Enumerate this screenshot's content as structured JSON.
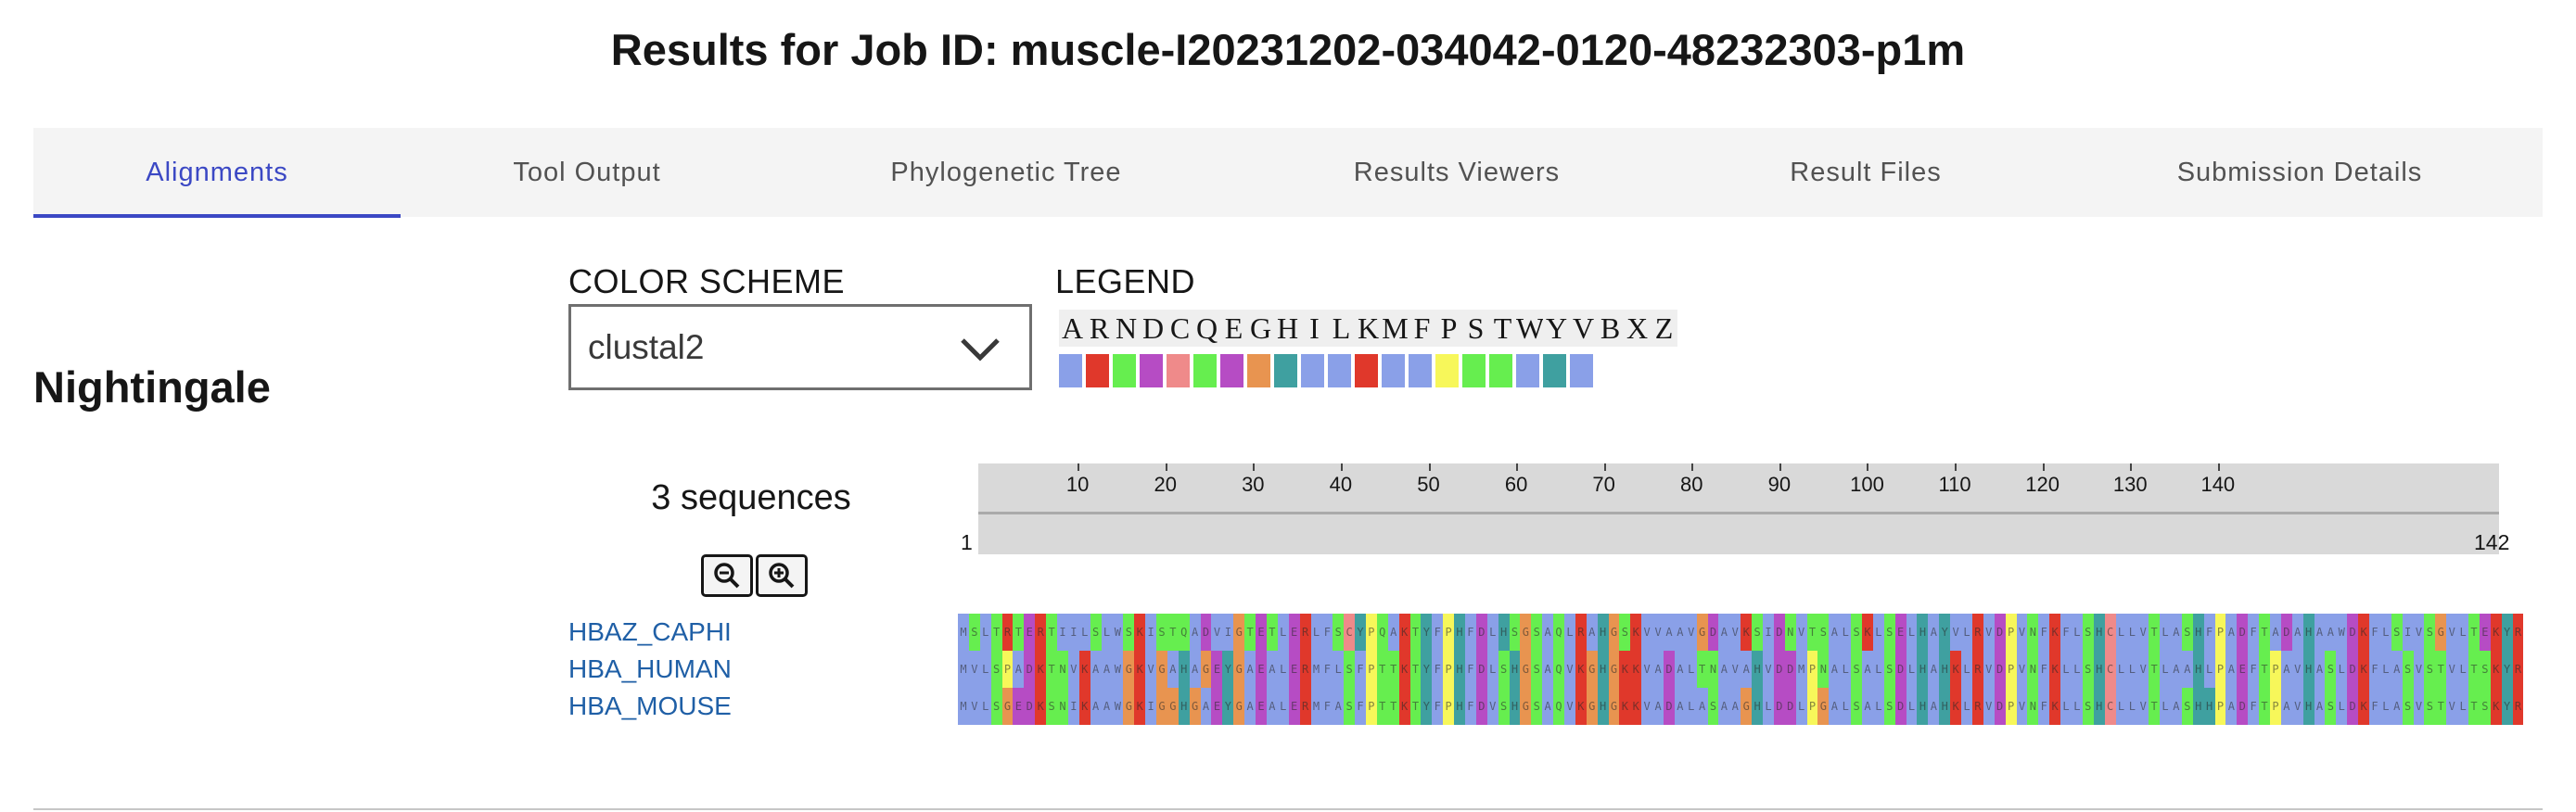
{
  "page": {
    "job_title": "Results for Job ID: muscle-I20231202-034042-0120-48232303-p1m"
  },
  "tabs": [
    {
      "label": "Alignments",
      "active": true
    },
    {
      "label": "Tool Output",
      "active": false
    },
    {
      "label": "Phylogenetic Tree",
      "active": false
    },
    {
      "label": "Results Viewers",
      "active": false
    },
    {
      "label": "Result Files",
      "active": false
    },
    {
      "label": "Submission Details",
      "active": false
    }
  ],
  "viewer": {
    "section_title": "Nightingale",
    "color_scheme_label": "COLOR SCHEME",
    "color_scheme_value": "clustal2",
    "legend_label": "LEGEND",
    "sequence_count": "3 sequences",
    "zoom_out_icon": "zoom-out-icon",
    "zoom_in_icon": "zoom-in-icon"
  },
  "legend": [
    {
      "letter": "A",
      "color": "#8aa0e8"
    },
    {
      "letter": "R",
      "color": "#e0382b"
    },
    {
      "letter": "N",
      "color": "#66ee4f"
    },
    {
      "letter": "D",
      "color": "#b64cc4"
    },
    {
      "letter": "C",
      "color": "#ef8a8a"
    },
    {
      "letter": "Q",
      "color": "#66ee4f"
    },
    {
      "letter": "E",
      "color": "#b64cc4"
    },
    {
      "letter": "G",
      "color": "#e89450"
    },
    {
      "letter": "H",
      "color": "#3fa0a0"
    },
    {
      "letter": "I",
      "color": "#8aa0e8"
    },
    {
      "letter": "L",
      "color": "#8aa0e8"
    },
    {
      "letter": "K",
      "color": "#e0382b"
    },
    {
      "letter": "M",
      "color": "#8aa0e8"
    },
    {
      "letter": "F",
      "color": "#8aa0e8"
    },
    {
      "letter": "P",
      "color": "#f7f75a"
    },
    {
      "letter": "S",
      "color": "#66ee4f"
    },
    {
      "letter": "T",
      "color": "#66ee4f"
    },
    {
      "letter": "W",
      "color": "#8aa0e8"
    },
    {
      "letter": "Y",
      "color": "#3fa0a0"
    },
    {
      "letter": "V",
      "color": "#8aa0e8"
    },
    {
      "letter": "B",
      "color": ""
    },
    {
      "letter": "X",
      "color": ""
    },
    {
      "letter": "Z",
      "color": ""
    }
  ],
  "ruler": {
    "ticks": [
      "10",
      "20",
      "30",
      "40",
      "50",
      "60",
      "70",
      "80",
      "90",
      "100",
      "110",
      "120",
      "130",
      "140"
    ],
    "range_start": "1",
    "range_end": "142"
  },
  "sequences": [
    {
      "name": "HBAZ_CAPHI",
      "residues": "MSLTRTERTIILSLWSKISTQADVIGTETLERLFSCYPQAKTYFPHFDLHSGSAQLRAHGSKVVAAVGDAVKSIDNVTSALSKLSELHAYVLRVDPVNFKFLSHCLLVTLASHFPADFTADAHAAWDKFLSIVSGVLTEKYR"
    },
    {
      "name": "HBA_HUMAN",
      "residues": "MVLSPADKTNVKAAWGKVGAHAGEYGAEALERMFLSFPTTKTYFPHFDLSHGSAQVKGHGKKVADALTNAVAHVDDMPNALSALSDLHAHKLRVDPVNFKLLSHCLLVTLAAHLPAEFTPAVHASLDKFLASVSTVLTSKYR"
    },
    {
      "name": "HBA_MOUSE",
      "residues": "MVLSGEDKSNIKAAWGKIGGHGAEYGAEALERMFASFPTTKTYFPHFDVSHGSAQVKGHGKKVADALASAAGHLDDLPGALSALSDLHAHKLRVDPVNFKLLSHCLLVTLASHHPADFTPAVHASLDKFLASVSTVLTSKYR"
    }
  ],
  "residue_colors": {
    "A": "#8aa0e8",
    "R": "#e0382b",
    "N": "#66ee4f",
    "D": "#b64cc4",
    "C": "#ef8a8a",
    "Q": "#66ee4f",
    "E": "#b64cc4",
    "G": "#e89450",
    "H": "#3fa0a0",
    "I": "#8aa0e8",
    "L": "#8aa0e8",
    "K": "#e0382b",
    "M": "#8aa0e8",
    "F": "#8aa0e8",
    "P": "#f7f75a",
    "S": "#66ee4f",
    "T": "#66ee4f",
    "W": "#8aa0e8",
    "Y": "#3fa0a0",
    "V": "#8aa0e8"
  }
}
